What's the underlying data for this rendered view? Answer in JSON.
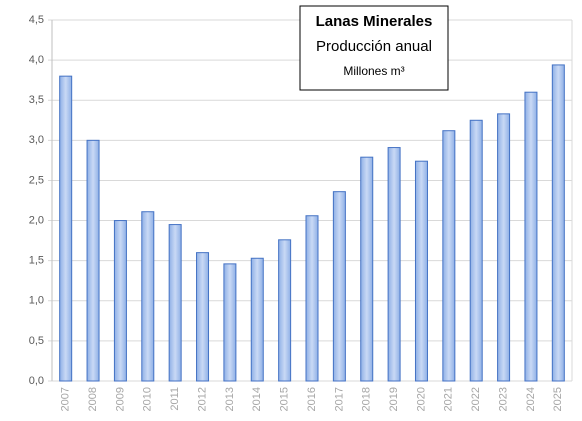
{
  "chart_data": {
    "type": "bar",
    "title": "Lanas Minerales",
    "subtitle": "Producción anual",
    "unit": "Millones m³",
    "categories": [
      "2007",
      "2008",
      "2009",
      "2010",
      "2011",
      "2012",
      "2013",
      "2014",
      "2015",
      "2016",
      "2017",
      "2018",
      "2019",
      "2020",
      "2021",
      "2022",
      "2023",
      "2024",
      "2025"
    ],
    "values": [
      3.8,
      3.0,
      2.0,
      2.11,
      1.95,
      1.6,
      1.46,
      1.53,
      1.76,
      2.06,
      2.36,
      2.79,
      2.91,
      2.74,
      3.12,
      3.25,
      3.33,
      3.6,
      3.94
    ],
    "color": "#4472c4",
    "ylim": [
      0,
      4.5
    ],
    "yticks": [
      {
        "value": 0,
        "label": "0,0"
      },
      {
        "value": 0.5,
        "label": "0,5"
      },
      {
        "value": 1,
        "label": "1,0"
      },
      {
        "value": 1.5,
        "label": "1,5"
      },
      {
        "value": 2,
        "label": "2,0"
      },
      {
        "value": 2.5,
        "label": "2,5"
      },
      {
        "value": 3,
        "label": "3,0"
      },
      {
        "value": 3.5,
        "label": "3,5"
      },
      {
        "value": 4,
        "label": "4,0"
      },
      {
        "value": 4.5,
        "label": "4,5"
      }
    ],
    "grid": true
  }
}
